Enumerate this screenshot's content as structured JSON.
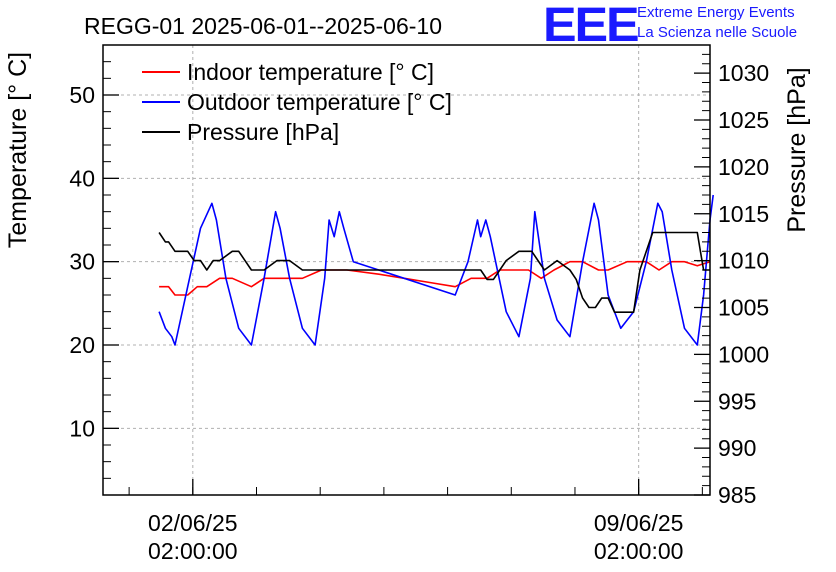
{
  "chart_data": {
    "type": "line",
    "title": "REGG-01 2025-06-01--2025-06-10",
    "ylabel": "Temperature [° C]",
    "y2label": "Pressure [hPa]",
    "xlabel": "",
    "ylim": [
      2,
      56
    ],
    "y2lim": [
      985,
      1033
    ],
    "yticks": [
      10,
      20,
      30,
      40,
      50
    ],
    "y2ticks": [
      985,
      990,
      995,
      1000,
      1005,
      1010,
      1015,
      1020,
      1025,
      1030
    ],
    "xlim_days": [
      0.67,
      10.2
    ],
    "xticks": [
      {
        "day": 2.08,
        "date": "02/06/25",
        "time": "02:00:00"
      },
      {
        "day": 9.08,
        "date": "09/06/25",
        "time": "02:00:00"
      }
    ],
    "grid": true,
    "legend_position": "top-left",
    "series": [
      {
        "name": "Indoor temperature [° C]",
        "color": "#ff0000",
        "axis": "left",
        "x": [
          1.55,
          1.7,
          1.8,
          2.0,
          2.15,
          2.3,
          2.5,
          2.7,
          3.0,
          3.2,
          3.4,
          3.6,
          3.8,
          4.1,
          4.5,
          5.0,
          5.4,
          5.8,
          6.2,
          6.45,
          6.7,
          6.9,
          7.1,
          7.35,
          7.55,
          7.75,
          8.0,
          8.2,
          8.45,
          8.6,
          8.9,
          9.2,
          9.4,
          9.6,
          9.8,
          10.0,
          10.2
        ],
        "values": [
          27,
          27,
          26,
          26,
          27,
          27,
          28,
          28,
          27,
          28,
          28,
          28,
          28,
          29,
          29,
          28.5,
          28,
          27.5,
          27,
          28,
          28,
          29,
          29,
          29,
          28,
          29,
          30,
          30,
          29,
          29,
          30,
          30,
          29,
          30,
          30,
          29.5,
          30
        ]
      },
      {
        "name": "Outdoor temperature [° C]",
        "color": "#0000ff",
        "axis": "left",
        "x": [
          1.55,
          1.65,
          1.75,
          1.8,
          2.0,
          2.2,
          2.38,
          2.45,
          2.6,
          2.8,
          3.0,
          3.2,
          3.38,
          3.45,
          3.6,
          3.8,
          4.0,
          4.15,
          4.22,
          4.3,
          4.38,
          4.45,
          4.6,
          6.2,
          6.4,
          6.55,
          6.6,
          6.68,
          6.75,
          7.0,
          7.2,
          7.38,
          7.45,
          7.6,
          7.8,
          8.0,
          8.2,
          8.38,
          8.45,
          8.6,
          8.8,
          9.0,
          9.2,
          9.38,
          9.45,
          9.6,
          9.8,
          10.0,
          10.1,
          10.2,
          10.25
        ],
        "values": [
          24,
          22,
          21,
          20,
          27,
          34,
          37,
          35,
          28,
          22,
          20,
          28,
          36,
          34,
          28,
          22,
          20,
          28,
          35,
          33,
          36,
          34,
          30,
          26,
          30,
          35,
          33,
          35,
          33,
          24,
          21,
          28,
          36,
          28,
          23,
          21,
          30,
          37,
          35,
          26,
          22,
          24,
          30,
          37,
          36,
          29,
          22,
          20,
          26,
          35,
          38
        ]
      },
      {
        "name": "Pressure [hPa]",
        "color": "#000000",
        "axis": "right",
        "x": [
          1.55,
          1.65,
          1.7,
          1.8,
          1.9,
          2.0,
          2.1,
          2.2,
          2.3,
          2.4,
          2.5,
          2.7,
          2.8,
          2.9,
          3.0,
          3.2,
          3.4,
          3.6,
          3.8,
          4.2,
          5.0,
          6.0,
          6.5,
          6.6,
          6.7,
          6.8,
          6.9,
          7.0,
          7.2,
          7.4,
          7.6,
          7.8,
          8.0,
          8.1,
          8.2,
          8.3,
          8.4,
          8.5,
          8.6,
          8.7,
          8.9,
          9.0,
          9.1,
          9.2,
          9.3,
          9.5,
          9.8,
          10.0,
          10.05,
          10.1,
          10.2
        ],
        "values": [
          1013,
          1012,
          1012,
          1011,
          1011,
          1011,
          1010,
          1010,
          1009,
          1010,
          1010,
          1011,
          1011,
          1010,
          1009,
          1009,
          1010,
          1010,
          1009,
          1009,
          1009,
          1009,
          1009,
          1009,
          1008,
          1008,
          1009,
          1010,
          1011,
          1011,
          1009,
          1010,
          1009,
          1008,
          1006,
          1005,
          1005,
          1006,
          1006,
          1004.5,
          1004.5,
          1004.5,
          1009,
          1011,
          1013,
          1013,
          1013,
          1013,
          1011,
          1009,
          1009
        ]
      }
    ]
  },
  "logo": {
    "mark": "EEE",
    "line1": "Extreme Energy Events",
    "line2": "La Scienza nelle Scuole"
  }
}
